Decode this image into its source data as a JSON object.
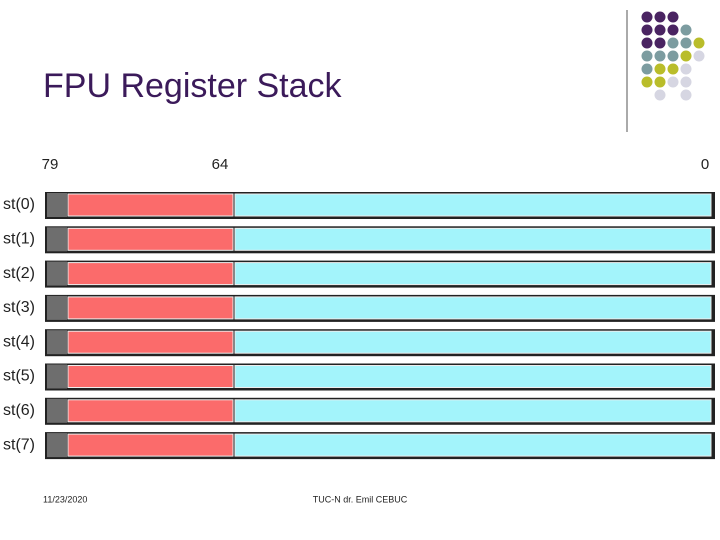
{
  "title": "FPU Register Stack",
  "bit_labels": [
    "79",
    "64",
    "0"
  ],
  "registers": [
    "st(0)",
    "st(1)",
    "st(2)",
    "st(3)",
    "st(4)",
    "st(5)",
    "st(6)",
    "st(7)"
  ],
  "footer": {
    "date": "11/23/2020",
    "author": "TUC-N dr. Emil CEBUC"
  }
}
